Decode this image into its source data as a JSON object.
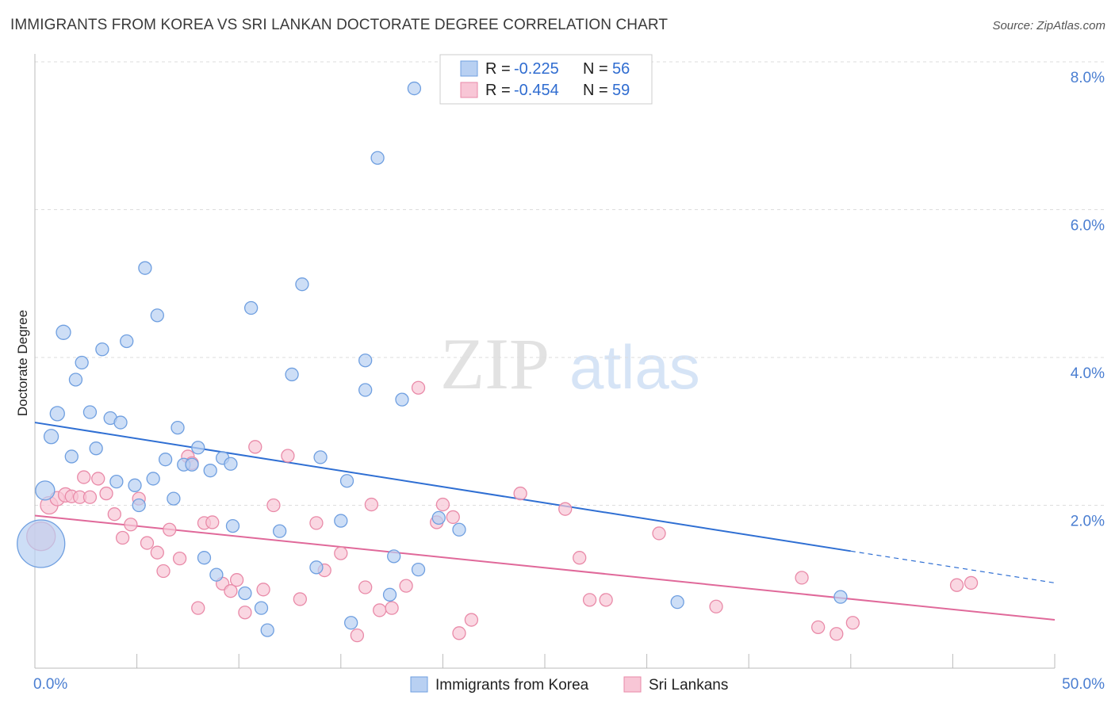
{
  "header": {
    "title": "IMMIGRANTS FROM KOREA VS SRI LANKAN DOCTORATE DEGREE CORRELATION CHART",
    "source": "Source: ZipAtlas.com"
  },
  "watermark": {
    "zip": "ZIP",
    "atlas": "atlas"
  },
  "colors": {
    "blue_fill": "#b8d0f2",
    "blue_stroke": "#6f9fe0",
    "blue_line": "#2f6fd3",
    "pink_fill": "#f8c6d6",
    "pink_stroke": "#e98aa8",
    "pink_line": "#e0699a",
    "axis_text": "#4a7ed1",
    "grid": "#dddddd"
  },
  "legend": {
    "rows": [
      {
        "r_label": "R =",
        "r_value": "-0.225",
        "n_label": "N =",
        "n_value": "56"
      },
      {
        "r_label": "R =",
        "r_value": "-0.454",
        "n_label": "N =",
        "n_value": "59"
      }
    ]
  },
  "chart_data": {
    "type": "scatter",
    "title": "IMMIGRANTS FROM KOREA VS SRI LANKAN DOCTORATE DEGREE CORRELATION CHART",
    "xlabel": "",
    "ylabel": "Doctorate Degree",
    "xlim": [
      0,
      50
    ],
    "ylim": [
      0,
      8
    ],
    "x_tick_labels": [
      "0.0%",
      "50.0%"
    ],
    "y_tick_labels": [
      "2.0%",
      "4.0%",
      "6.0%",
      "8.0%"
    ],
    "y_ticks": [
      2,
      4,
      6,
      8
    ],
    "grid": true,
    "legend_position": "top-center",
    "series": [
      {
        "name": "Immigrants from Korea",
        "r": -0.225,
        "n": 56,
        "trend": {
          "x0": 0,
          "y0": 3.12,
          "x1": 40,
          "y1": 1.38,
          "dashed_to_x": 50,
          "dashed_to_y": 0.95
        },
        "points": [
          [
            0.3,
            1.48,
            30
          ],
          [
            0.5,
            2.2,
            12
          ],
          [
            0.8,
            2.93,
            9
          ],
          [
            1.1,
            3.24,
            9
          ],
          [
            1.4,
            4.34,
            9
          ],
          [
            1.8,
            2.66,
            8
          ],
          [
            2.0,
            3.7,
            8
          ],
          [
            2.3,
            3.93,
            8
          ],
          [
            2.7,
            3.26,
            8
          ],
          [
            3.0,
            2.77,
            8
          ],
          [
            3.3,
            4.11,
            8
          ],
          [
            3.7,
            3.18,
            8
          ],
          [
            4.0,
            2.32,
            8
          ],
          [
            4.2,
            3.12,
            8
          ],
          [
            4.5,
            4.22,
            8
          ],
          [
            4.9,
            2.27,
            8
          ],
          [
            5.1,
            2.0,
            8
          ],
          [
            5.4,
            5.21,
            8
          ],
          [
            5.8,
            2.36,
            8
          ],
          [
            6.0,
            4.57,
            8
          ],
          [
            6.4,
            2.62,
            8
          ],
          [
            6.8,
            2.09,
            8
          ],
          [
            7.0,
            3.05,
            8
          ],
          [
            7.3,
            2.55,
            8
          ],
          [
            7.7,
            2.55,
            8
          ],
          [
            8.0,
            2.78,
            8
          ],
          [
            8.3,
            1.29,
            8
          ],
          [
            8.6,
            2.47,
            8
          ],
          [
            8.9,
            1.06,
            8
          ],
          [
            9.2,
            2.64,
            8
          ],
          [
            9.6,
            2.56,
            8
          ],
          [
            9.7,
            1.72,
            8
          ],
          [
            10.3,
            0.81,
            8
          ],
          [
            10.6,
            4.67,
            8
          ],
          [
            11.1,
            0.61,
            8
          ],
          [
            11.4,
            0.31,
            8
          ],
          [
            12.0,
            1.65,
            8
          ],
          [
            12.6,
            3.77,
            8
          ],
          [
            13.1,
            4.99,
            8
          ],
          [
            13.8,
            1.16,
            8
          ],
          [
            14.0,
            2.65,
            8
          ],
          [
            15.3,
            2.33,
            8
          ],
          [
            15.0,
            1.79,
            8
          ],
          [
            15.5,
            0.41,
            8
          ],
          [
            16.2,
            3.96,
            8
          ],
          [
            16.2,
            3.56,
            8
          ],
          [
            16.8,
            6.7,
            8
          ],
          [
            17.4,
            0.79,
            8
          ],
          [
            17.6,
            1.31,
            8
          ],
          [
            18.0,
            3.43,
            8
          ],
          [
            18.6,
            7.64,
            8
          ],
          [
            18.8,
            1.13,
            8
          ],
          [
            19.8,
            1.83,
            8
          ],
          [
            20.8,
            1.67,
            8
          ],
          [
            31.5,
            0.69,
            8
          ],
          [
            39.5,
            0.76,
            8
          ]
        ]
      },
      {
        "name": "Sri Lankans",
        "r": -0.454,
        "n": 59,
        "trend": {
          "x0": 0,
          "y0": 1.86,
          "x1": 50,
          "y1": 0.45
        },
        "points": [
          [
            0.3,
            1.58,
            18
          ],
          [
            0.7,
            2.0,
            11
          ],
          [
            1.1,
            2.09,
            9
          ],
          [
            1.5,
            2.14,
            9
          ],
          [
            1.8,
            2.12,
            8
          ],
          [
            2.2,
            2.11,
            8
          ],
          [
            2.4,
            2.38,
            8
          ],
          [
            2.7,
            2.11,
            8
          ],
          [
            3.1,
            2.36,
            8
          ],
          [
            3.5,
            2.16,
            8
          ],
          [
            3.9,
            1.88,
            8
          ],
          [
            4.3,
            1.56,
            8
          ],
          [
            4.7,
            1.74,
            8
          ],
          [
            5.1,
            2.09,
            8
          ],
          [
            5.5,
            1.49,
            8
          ],
          [
            6.0,
            1.36,
            8
          ],
          [
            6.3,
            1.11,
            8
          ],
          [
            6.6,
            1.67,
            8
          ],
          [
            7.1,
            1.28,
            8
          ],
          [
            7.5,
            2.66,
            8
          ],
          [
            7.7,
            2.57,
            8
          ],
          [
            8.0,
            0.61,
            8
          ],
          [
            8.3,
            1.76,
            8
          ],
          [
            8.7,
            1.77,
            8
          ],
          [
            9.2,
            0.94,
            8
          ],
          [
            9.6,
            0.84,
            8
          ],
          [
            9.9,
            0.99,
            8
          ],
          [
            10.3,
            0.55,
            8
          ],
          [
            10.8,
            2.79,
            8
          ],
          [
            11.2,
            0.86,
            8
          ],
          [
            11.7,
            2.0,
            8
          ],
          [
            12.4,
            2.67,
            8
          ],
          [
            13.0,
            0.73,
            8
          ],
          [
            13.8,
            1.76,
            8
          ],
          [
            14.2,
            1.12,
            8
          ],
          [
            15.0,
            1.35,
            8
          ],
          [
            15.8,
            0.24,
            8
          ],
          [
            16.2,
            0.89,
            8
          ],
          [
            16.5,
            2.01,
            8
          ],
          [
            16.9,
            0.58,
            8
          ],
          [
            17.5,
            0.61,
            8
          ],
          [
            18.2,
            0.91,
            8
          ],
          [
            18.8,
            3.59,
            8
          ],
          [
            19.7,
            1.77,
            8
          ],
          [
            20.0,
            2.01,
            8
          ],
          [
            20.5,
            1.84,
            8
          ],
          [
            20.8,
            0.27,
            8
          ],
          [
            21.4,
            0.45,
            8
          ],
          [
            23.8,
            2.16,
            8
          ],
          [
            26.0,
            1.95,
            8
          ],
          [
            26.7,
            1.29,
            8
          ],
          [
            27.2,
            0.72,
            8
          ],
          [
            28.0,
            0.72,
            8
          ],
          [
            30.6,
            1.62,
            8
          ],
          [
            33.4,
            0.63,
            8
          ],
          [
            37.6,
            1.02,
            8
          ],
          [
            38.4,
            0.35,
            8
          ],
          [
            39.3,
            0.26,
            8
          ],
          [
            40.1,
            0.41,
            8
          ]
        ]
      }
    ],
    "extra_pink_points": [
      [
        45.2,
        0.92,
        8
      ],
      [
        45.9,
        0.95,
        8
      ]
    ]
  },
  "bottom_legend": {
    "items": [
      {
        "label": "Immigrants from Korea"
      },
      {
        "label": "Sri Lankans"
      }
    ]
  }
}
